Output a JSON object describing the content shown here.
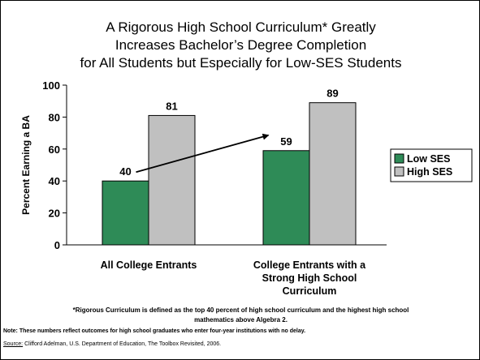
{
  "title_lines": [
    "A Rigorous High School Curriculum* Greatly",
    "Increases Bachelor’s Degree Completion",
    "for All Students but Especially for Low-SES Students"
  ],
  "chart_data": {
    "type": "bar",
    "categories": [
      "All College Entrants",
      "College Entrants with a Strong High School Curriculum"
    ],
    "category_label_lines": [
      [
        "All College Entrants"
      ],
      [
        "College Entrants with a",
        "Strong High School",
        "Curriculum"
      ]
    ],
    "series": [
      {
        "name": "Low SES",
        "values": [
          40,
          59
        ],
        "color": "#2e8b57"
      },
      {
        "name": "High SES",
        "values": [
          81,
          89
        ],
        "color": "#c0c0c0"
      }
    ],
    "data_labels": [
      [
        "40",
        "59"
      ],
      [
        "81",
        "89"
      ]
    ],
    "ylabel": "Percent Earning a BA",
    "xlabel": "",
    "ylim": [
      0,
      100
    ],
    "yticks": [
      0,
      20,
      40,
      60,
      80,
      100
    ],
    "grid": false,
    "legend": "right",
    "annotation": "arrow from Low SES All College Entrants (40) to Low SES Strong Curriculum (59)"
  },
  "footnote_lines": [
    "*Rigorous Curriculum is defined as the top 40 percent of high school curriculum and the highest high school",
    "mathematics above Algebra 2."
  ],
  "note": "Note: These numbers reflect outcomes for high school graduates who enter four-year institutions with no delay.",
  "source_label": "Source:",
  "source_text": " Clifford Adelman, U.S. Department of Education, The Toolbox Revisited, 2006."
}
